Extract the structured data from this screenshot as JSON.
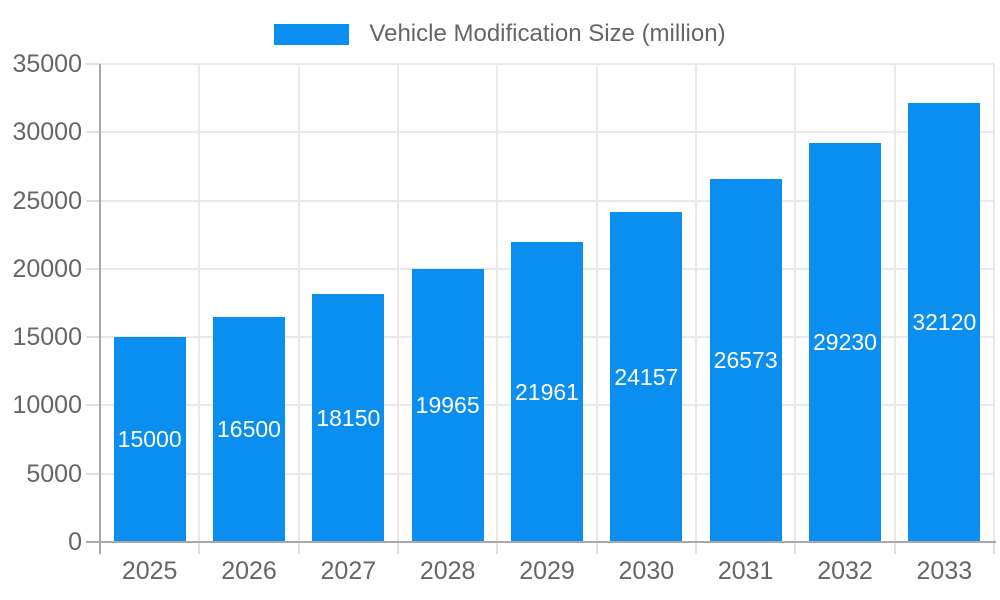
{
  "legend": {
    "label": "Vehicle Modification Size (million)"
  },
  "colors": {
    "bar": "#0a8ef0",
    "grid": "#e9e9e9",
    "tick": "#e0e0e0",
    "axis": "#a8a8a8",
    "label": "#666666",
    "value_label": "#ffffff",
    "background": "#ffffff"
  },
  "chart_data": {
    "type": "bar",
    "title": "Vehicle Modification Size (million)",
    "categories": [
      "2025",
      "2026",
      "2027",
      "2028",
      "2029",
      "2030",
      "2031",
      "2032",
      "2033"
    ],
    "values": [
      15000,
      16500,
      18150,
      19965,
      21961,
      24157,
      26573,
      29230,
      32120
    ],
    "series": [
      {
        "name": "Vehicle Modification Size (million)",
        "values": [
          15000,
          16500,
          18150,
          19965,
          21961,
          24157,
          26573,
          29230,
          32120
        ]
      }
    ],
    "xlabel": "",
    "ylabel": "",
    "ylim": [
      0,
      35000
    ],
    "yticks": [
      0,
      5000,
      10000,
      15000,
      20000,
      25000,
      30000,
      35000
    ],
    "grid": true,
    "legend_position": "top-center",
    "value_label_position": "inside-center"
  }
}
